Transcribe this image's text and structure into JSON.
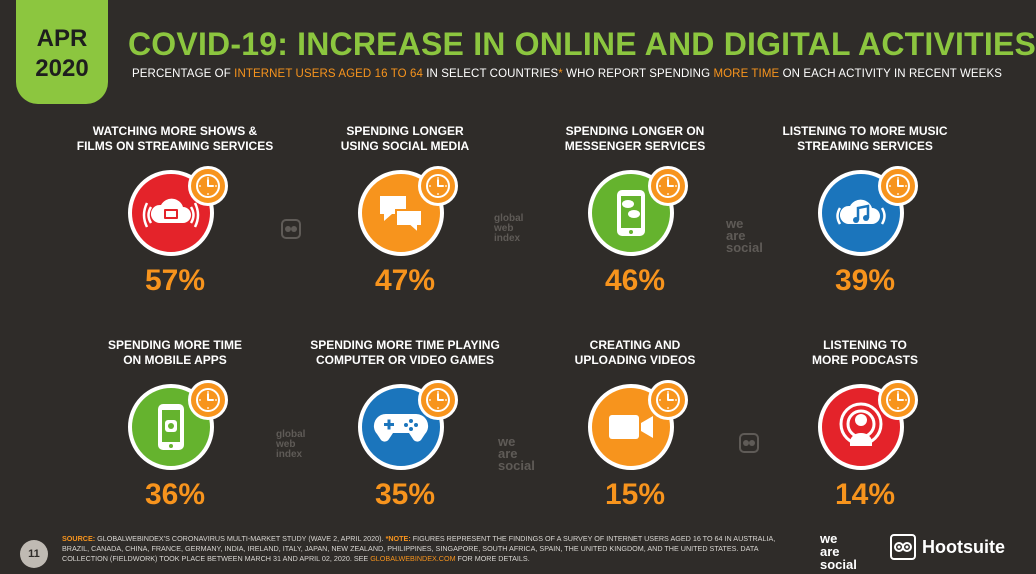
{
  "badge": {
    "line1": "APR",
    "line2": "2020"
  },
  "header": {
    "title": "COVID-19: INCREASE IN ONLINE AND DIGITAL ACTIVITIES",
    "subtitle_parts": {
      "a": "PERCENTAGE OF ",
      "b": "INTERNET USERS AGED 16 TO 64",
      "c": " IN SELECT COUNTRIES",
      "d": "*",
      "e": " WHO REPORT SPENDING ",
      "f": "MORE TIME",
      "g": " ON EACH ACTIVITY IN RECENT WEEKS"
    }
  },
  "colors": {
    "background": "#2f2c29",
    "title_green": "#8cc63f",
    "accent_orange": "#f7941d",
    "red": "#e4232a",
    "orange": "#f7941d",
    "green": "#65b32e",
    "blue": "#1b75bc"
  },
  "chart_data": {
    "type": "table",
    "title": "COVID-19: INCREASE IN ONLINE AND DIGITAL ACTIVITIES",
    "unit": "%",
    "categories": [
      "WATCHING MORE SHOWS & FILMS ON STREAMING SERVICES",
      "SPENDING LONGER USING SOCIAL MEDIA",
      "SPENDING LONGER ON MESSENGER SERVICES",
      "LISTENING TO MORE MUSIC STREAMING SERVICES",
      "SPENDING MORE TIME ON MOBILE APPS",
      "SPENDING MORE TIME PLAYING COMPUTER OR VIDEO GAMES",
      "CREATING AND UPLOADING VIDEOS",
      "LISTENING TO MORE PODCASTS"
    ],
    "values": [
      57,
      47,
      46,
      39,
      36,
      35,
      15,
      14
    ]
  },
  "tiles": [
    {
      "label": "WATCHING MORE SHOWS &\nFILMS ON STREAMING SERVICES",
      "value": "57%",
      "color": "#e4232a",
      "icon": "streaming-cloud-icon"
    },
    {
      "label": "SPENDING LONGER\nUSING SOCIAL MEDIA",
      "value": "47%",
      "color": "#f7941d",
      "icon": "chat-bubbles-icon"
    },
    {
      "label": "SPENDING LONGER ON\nMESSENGER SERVICES",
      "value": "46%",
      "color": "#65b32e",
      "icon": "phone-messages-icon"
    },
    {
      "label": "LISTENING TO MORE MUSIC\nSTREAMING SERVICES",
      "value": "39%",
      "color": "#1b75bc",
      "icon": "music-cloud-icon"
    },
    {
      "label": "SPENDING MORE TIME\nON MOBILE APPS",
      "value": "36%",
      "color": "#65b32e",
      "icon": "mobile-app-icon"
    },
    {
      "label": "SPENDING MORE TIME PLAYING\nCOMPUTER OR VIDEO GAMES",
      "value": "35%",
      "color": "#1b75bc",
      "icon": "gamepad-icon"
    },
    {
      "label": "CREATING AND\nUPLOADING VIDEOS",
      "value": "15%",
      "color": "#f7941d",
      "icon": "video-camera-icon"
    },
    {
      "label": "LISTENING TO\nMORE PODCASTS",
      "value": "14%",
      "color": "#e4232a",
      "icon": "podcast-icon"
    }
  ],
  "watermarks": {
    "gwi": "global\nweb\nindex",
    "was": "we\nare\nsocial"
  },
  "footer": {
    "source_label": "SOURCE:",
    "source_text": " GLOBALWEBINDEX'S CORONAVIRUS MULTI-MARKET STUDY (WAVE 2, APRIL 2020). ",
    "note_label": "*NOTE:",
    "note_text": " FIGURES REPRESENT THE FINDINGS OF A SURVEY OF INTERNET USERS AGED 16 TO 64 IN AUSTRALIA, BRAZIL, CANADA, CHINA, FRANCE, GERMANY, INDIA, IRELAND, ITALY, JAPAN, NEW ZEALAND, PHILIPPINES, SINGAPORE, SOUTH AFRICA, SPAIN, THE UNITED KINGDOM, AND THE UNITED STATES. DATA COLLECTION (FIELDWORK) TOOK PLACE BETWEEN MARCH 31 AND APRIL 02, 2020. SEE ",
    "link": "GLOBALWEBINDEX.COM",
    "tail": " FOR MORE DETAILS."
  },
  "page_number": "11",
  "brands": {
    "was": "we\nare\nsocial",
    "hootsuite": "Hootsuite"
  }
}
